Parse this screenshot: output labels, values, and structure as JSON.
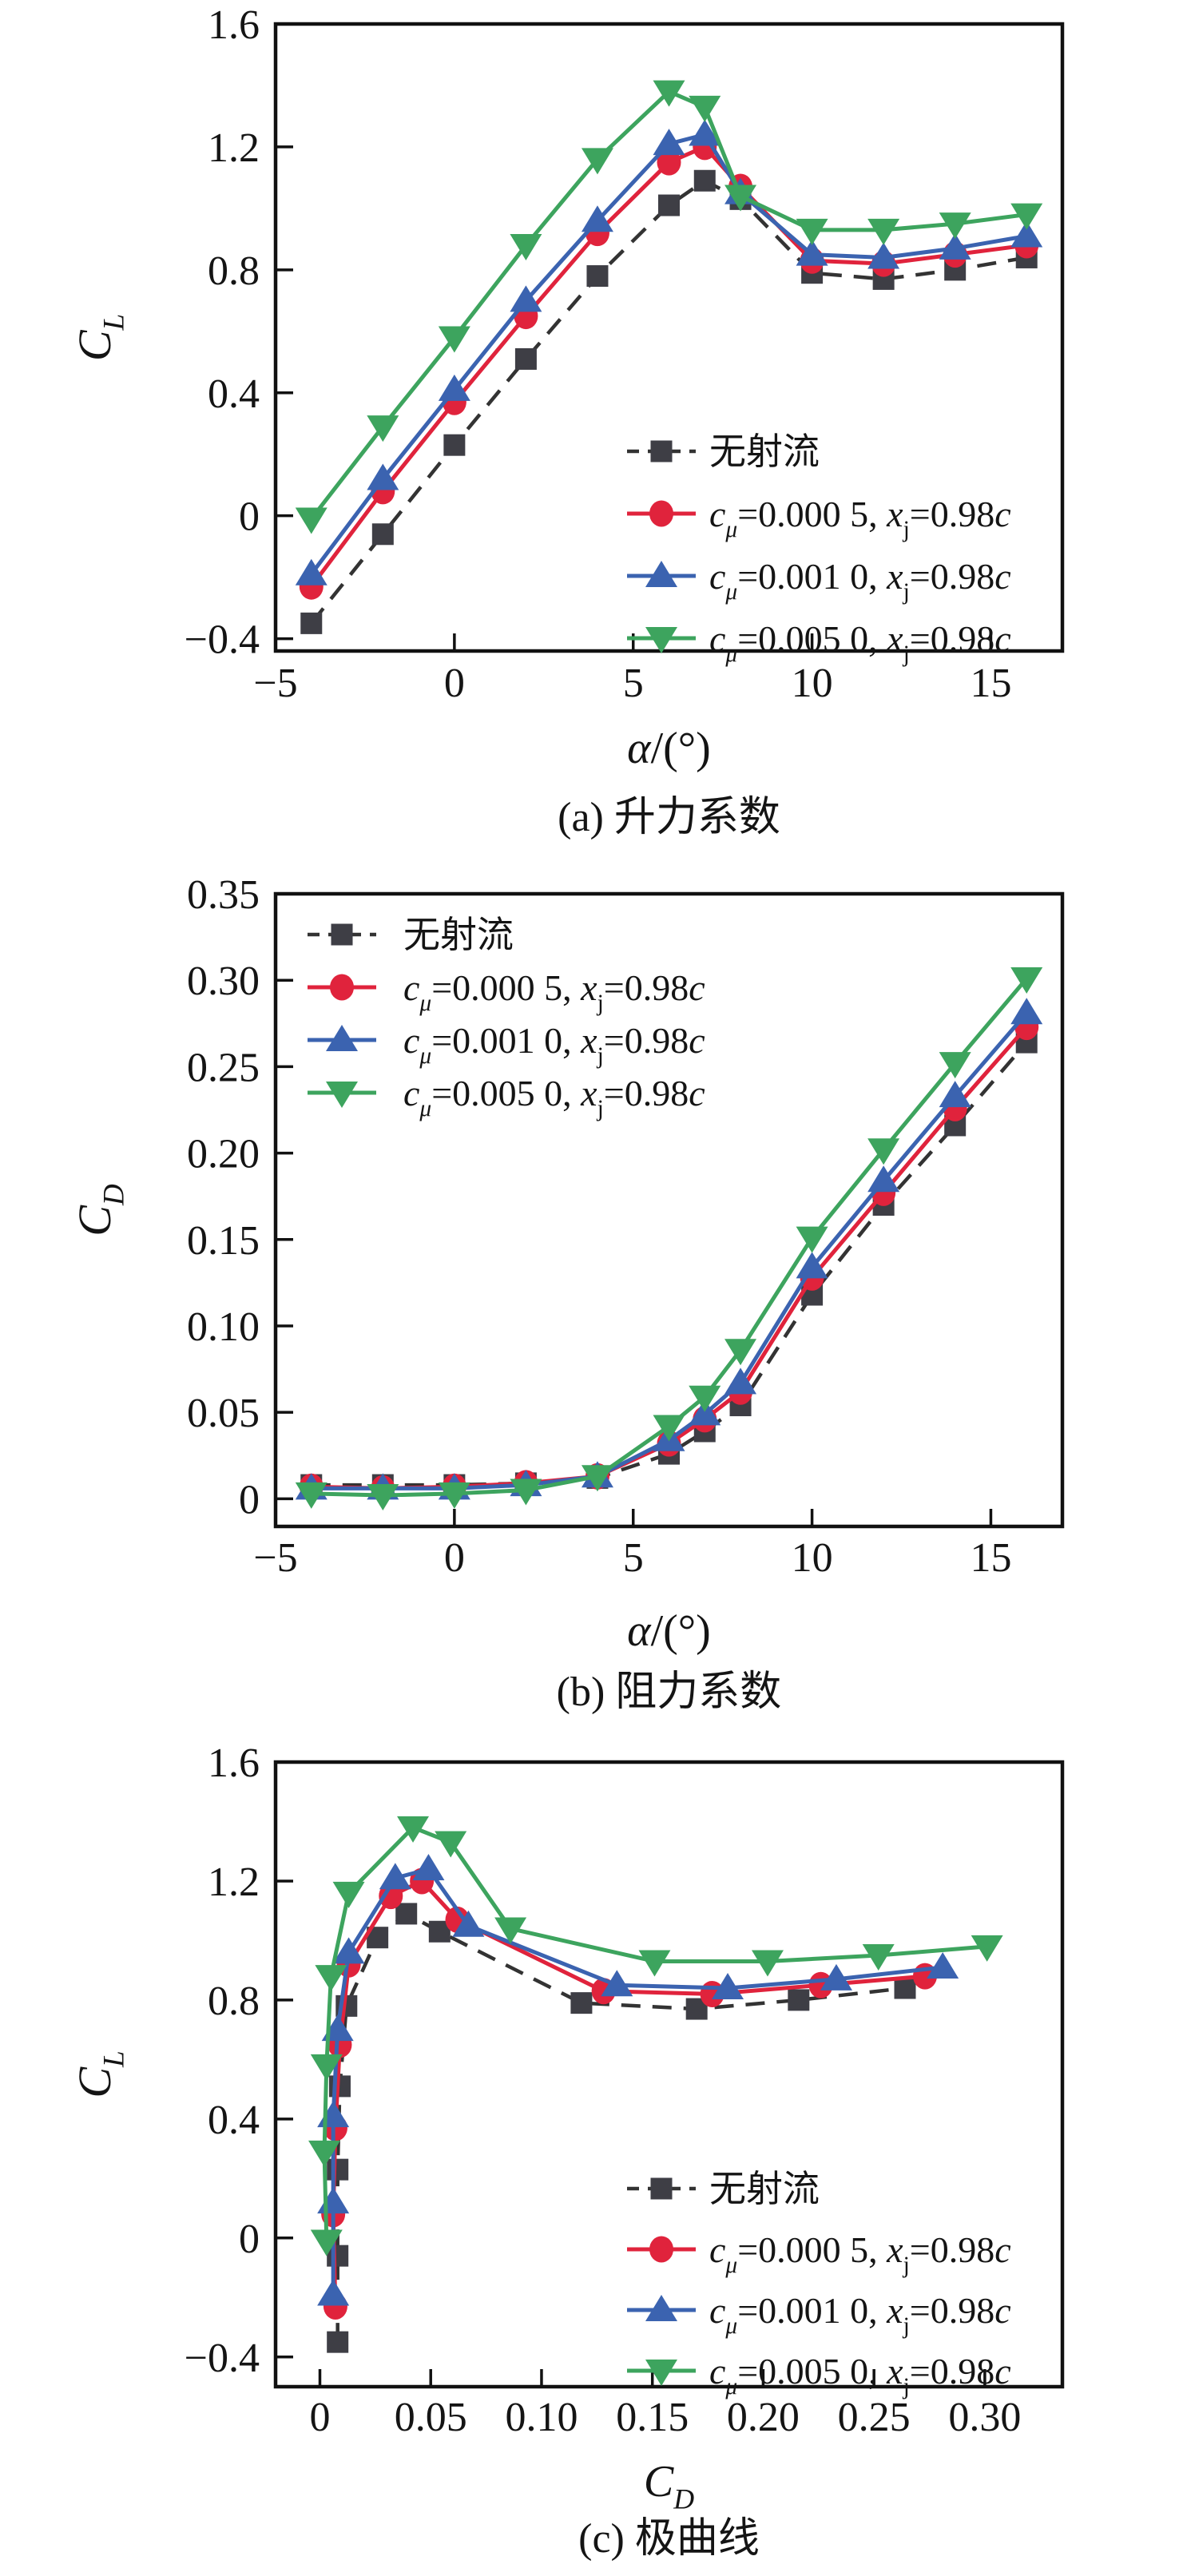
{
  "figure": {
    "background": "#ffffff",
    "axis_color": "#111111",
    "text_color": "#141414"
  },
  "chart_data": [
    {
      "id": "a",
      "type": "line",
      "caption": "(a) 升力系数",
      "xlabel": "α/(°)",
      "ylabel": "C_L",
      "xlabel_segments": [
        {
          "t": "α",
          "i": true
        },
        {
          "t": "/(°)"
        }
      ],
      "ylabel_segments": [
        {
          "t": "C",
          "i": true
        },
        {
          "t": "L",
          "i": true,
          "sub": true
        }
      ],
      "xlim": [
        -5,
        17
      ],
      "ylim": [
        -0.44,
        1.6
      ],
      "xticks": [
        -5,
        0,
        5,
        10,
        15
      ],
      "xtick_labels": [
        "−5",
        "0",
        "5",
        "10",
        "15"
      ],
      "yticks": [
        -0.4,
        0,
        0.4,
        0.8,
        1.2,
        1.6
      ],
      "ytick_labels": [
        "−0.4",
        "0",
        "0.4",
        "0.8",
        "1.2",
        "1.6"
      ],
      "grid": false,
      "legend_position": "inside-right-middle",
      "x": [
        -4,
        -2,
        0,
        2,
        4,
        6,
        7,
        8,
        10,
        12,
        14,
        16
      ],
      "series": [
        {
          "name": "无射流",
          "name_segments": [
            {
              "t": "无射流"
            }
          ],
          "marker": "square",
          "color": "#3e3e45",
          "line": "dashed",
          "line_color": "#333333",
          "values": [
            -0.35,
            -0.06,
            0.23,
            0.51,
            0.78,
            1.01,
            1.09,
            1.03,
            0.79,
            0.77,
            0.8,
            0.84
          ]
        },
        {
          "name": "cμ=0.000 5, xj=0.98c",
          "name_segments": [
            {
              "t": "c",
              "i": true
            },
            {
              "t": "μ",
              "i": true,
              "sub": true
            },
            {
              "t": "=0.000 5, "
            },
            {
              "t": "x",
              "i": true
            },
            {
              "t": "j",
              "sub": true
            },
            {
              "t": "=0.98"
            },
            {
              "t": "c",
              "i": true
            }
          ],
          "marker": "circle",
          "color": "#e0233c",
          "line": "solid",
          "line_color": "#e0233c",
          "values": [
            -0.23,
            0.08,
            0.37,
            0.65,
            0.92,
            1.15,
            1.2,
            1.07,
            0.83,
            0.82,
            0.85,
            0.88
          ]
        },
        {
          "name": "cμ=0.001 0, xj=0.98c",
          "name_segments": [
            {
              "t": "c",
              "i": true
            },
            {
              "t": "μ",
              "i": true,
              "sub": true
            },
            {
              "t": "=0.001 0, "
            },
            {
              "t": "x",
              "i": true
            },
            {
              "t": "j",
              "sub": true
            },
            {
              "t": "=0.98"
            },
            {
              "t": "c",
              "i": true
            }
          ],
          "marker": "triangle-up",
          "color": "#3b63b0",
          "line": "solid",
          "line_color": "#3b63b0",
          "values": [
            -0.19,
            0.12,
            0.41,
            0.7,
            0.96,
            1.21,
            1.24,
            1.05,
            0.85,
            0.84,
            0.87,
            0.91
          ]
        },
        {
          "name": "cμ=0.005 0, xj=0.98c",
          "name_segments": [
            {
              "t": "c",
              "i": true
            },
            {
              "t": "μ",
              "i": true,
              "sub": true
            },
            {
              "t": "=0.005 0, "
            },
            {
              "t": "x",
              "i": true
            },
            {
              "t": "j",
              "sub": true
            },
            {
              "t": "=0.98"
            },
            {
              "t": "c",
              "i": true
            }
          ],
          "marker": "triangle-down",
          "color": "#3da45e",
          "line": "solid",
          "line_color": "#3da45e",
          "values": [
            -0.01,
            0.29,
            0.58,
            0.88,
            1.16,
            1.38,
            1.33,
            1.04,
            0.93,
            0.93,
            0.95,
            0.98
          ]
        }
      ]
    },
    {
      "id": "b",
      "type": "line",
      "caption": "(b) 阻力系数",
      "xlabel": "α/(°)",
      "ylabel": "C_D",
      "xlabel_segments": [
        {
          "t": "α",
          "i": true
        },
        {
          "t": "/(°)"
        }
      ],
      "ylabel_segments": [
        {
          "t": "C",
          "i": true
        },
        {
          "t": "D",
          "i": true,
          "sub": true
        }
      ],
      "xlim": [
        -5,
        17
      ],
      "ylim": [
        -0.016,
        0.35
      ],
      "xticks": [
        -5,
        0,
        5,
        10,
        15
      ],
      "xtick_labels": [
        "−5",
        "0",
        "5",
        "10",
        "15"
      ],
      "yticks": [
        0,
        0.05,
        0.1,
        0.15,
        0.2,
        0.25,
        0.3,
        0.35
      ],
      "ytick_labels": [
        "0",
        "0.05",
        "0.10",
        "0.15",
        "0.20",
        "0.25",
        "0.30",
        "0.35"
      ],
      "grid": false,
      "legend_position": "inside-left-top",
      "x": [
        -4,
        -2,
        0,
        2,
        4,
        6,
        7,
        8,
        10,
        12,
        14,
        16
      ],
      "series": [
        {
          "name": "无射流",
          "name_segments": [
            {
              "t": "无射流"
            }
          ],
          "marker": "square",
          "color": "#3e3e45",
          "line": "dashed",
          "line_color": "#333333",
          "values": [
            0.008,
            0.008,
            0.008,
            0.009,
            0.012,
            0.026,
            0.039,
            0.054,
            0.118,
            0.17,
            0.216,
            0.264
          ]
        },
        {
          "name": "cμ=0.000 5, xj=0.98c",
          "name_segments": [
            {
              "t": "c",
              "i": true
            },
            {
              "t": "μ",
              "i": true,
              "sub": true
            },
            {
              "t": "=0.000 5, "
            },
            {
              "t": "x",
              "i": true
            },
            {
              "t": "j",
              "sub": true
            },
            {
              "t": "=0.98"
            },
            {
              "t": "c",
              "i": true
            }
          ],
          "marker": "circle",
          "color": "#e0233c",
          "line": "solid",
          "line_color": "#e0233c",
          "values": [
            0.007,
            0.006,
            0.007,
            0.009,
            0.013,
            0.032,
            0.046,
            0.062,
            0.128,
            0.177,
            0.226,
            0.273
          ]
        },
        {
          "name": "cμ=0.001 0, xj=0.98c",
          "name_segments": [
            {
              "t": "c",
              "i": true
            },
            {
              "t": "μ",
              "i": true,
              "sub": true
            },
            {
              "t": "=0.001 0, "
            },
            {
              "t": "x",
              "i": true
            },
            {
              "t": "j",
              "sub": true
            },
            {
              "t": "=0.98"
            },
            {
              "t": "c",
              "i": true
            }
          ],
          "marker": "triangle-up",
          "color": "#3b63b0",
          "line": "solid",
          "line_color": "#3b63b0",
          "values": [
            0.006,
            0.006,
            0.006,
            0.008,
            0.013,
            0.034,
            0.049,
            0.067,
            0.134,
            0.184,
            0.233,
            0.281
          ]
        },
        {
          "name": "cμ=0.005 0, xj=0.98c",
          "name_segments": [
            {
              "t": "c",
              "i": true
            },
            {
              "t": "μ",
              "i": true,
              "sub": true
            },
            {
              "t": "=0.005 0, "
            },
            {
              "t": "x",
              "i": true
            },
            {
              "t": "j",
              "sub": true
            },
            {
              "t": "=0.98"
            },
            {
              "t": "c",
              "i": true
            }
          ],
          "marker": "triangle-down",
          "color": "#3da45e",
          "line": "solid",
          "line_color": "#3da45e",
          "values": [
            0.003,
            0.002,
            0.003,
            0.005,
            0.013,
            0.042,
            0.059,
            0.086,
            0.151,
            0.202,
            0.252,
            0.301
          ]
        }
      ]
    },
    {
      "id": "c",
      "type": "line",
      "caption": "(c) 极曲线",
      "xlabel": "C_D",
      "ylabel": "C_L",
      "xlabel_segments": [
        {
          "t": "C",
          "i": true
        },
        {
          "t": "D",
          "i": true,
          "sub": true
        }
      ],
      "ylabel_segments": [
        {
          "t": "C",
          "i": true
        },
        {
          "t": "L",
          "i": true,
          "sub": true
        }
      ],
      "xlim": [
        -0.02,
        0.335
      ],
      "ylim": [
        -0.5,
        1.6
      ],
      "xticks": [
        0,
        0.05,
        0.1,
        0.15,
        0.2,
        0.25,
        0.3
      ],
      "xtick_labels": [
        "0",
        "0.05",
        "0.10",
        "0.15",
        "0.20",
        "0.25",
        "0.30"
      ],
      "yticks": [
        -0.4,
        0,
        0.4,
        0.8,
        1.2,
        1.6
      ],
      "ytick_labels": [
        "−0.4",
        "0",
        "0.4",
        "0.8",
        "1.2",
        "1.6"
      ],
      "grid": false,
      "legend_position": "inside-right-bottom",
      "series": [
        {
          "name": "无射流",
          "name_segments": [
            {
              "t": "无射流"
            }
          ],
          "marker": "square",
          "color": "#3e3e45",
          "line": "dashed",
          "line_color": "#333333",
          "x": [
            0.008,
            0.008,
            0.008,
            0.009,
            0.012,
            0.026,
            0.039,
            0.054,
            0.118,
            0.17,
            0.216,
            0.264
          ],
          "values": [
            -0.35,
            -0.06,
            0.23,
            0.51,
            0.78,
            1.01,
            1.09,
            1.03,
            0.79,
            0.77,
            0.8,
            0.84
          ]
        },
        {
          "name": "cμ=0.000 5, xj=0.98c",
          "name_segments": [
            {
              "t": "c",
              "i": true
            },
            {
              "t": "μ",
              "i": true,
              "sub": true
            },
            {
              "t": "=0.000 5, "
            },
            {
              "t": "x",
              "i": true
            },
            {
              "t": "j",
              "sub": true
            },
            {
              "t": "=0.98"
            },
            {
              "t": "c",
              "i": true
            }
          ],
          "marker": "circle",
          "color": "#e0233c",
          "line": "solid",
          "line_color": "#e0233c",
          "x": [
            0.007,
            0.006,
            0.007,
            0.009,
            0.013,
            0.032,
            0.046,
            0.062,
            0.128,
            0.177,
            0.226,
            0.273
          ],
          "values": [
            -0.23,
            0.08,
            0.37,
            0.65,
            0.92,
            1.15,
            1.2,
            1.07,
            0.83,
            0.82,
            0.85,
            0.88
          ]
        },
        {
          "name": "cμ=0.001 0, xj=0.98c",
          "name_segments": [
            {
              "t": "c",
              "i": true
            },
            {
              "t": "μ",
              "i": true,
              "sub": true
            },
            {
              "t": "=0.001 0, "
            },
            {
              "t": "x",
              "i": true
            },
            {
              "t": "j",
              "sub": true
            },
            {
              "t": "=0.98"
            },
            {
              "t": "c",
              "i": true
            }
          ],
          "marker": "triangle-up",
          "color": "#3b63b0",
          "line": "solid",
          "line_color": "#3b63b0",
          "x": [
            0.006,
            0.006,
            0.006,
            0.008,
            0.013,
            0.034,
            0.049,
            0.067,
            0.134,
            0.184,
            0.233,
            0.281
          ],
          "values": [
            -0.19,
            0.12,
            0.41,
            0.7,
            0.96,
            1.21,
            1.24,
            1.05,
            0.85,
            0.84,
            0.87,
            0.91
          ]
        },
        {
          "name": "cμ=0.005 0, xj=0.98c",
          "name_segments": [
            {
              "t": "c",
              "i": true
            },
            {
              "t": "μ",
              "i": true,
              "sub": true
            },
            {
              "t": "=0.005 0, "
            },
            {
              "t": "x",
              "i": true
            },
            {
              "t": "j",
              "sub": true
            },
            {
              "t": "=0.98"
            },
            {
              "t": "c",
              "i": true
            }
          ],
          "marker": "triangle-down",
          "color": "#3da45e",
          "line": "solid",
          "line_color": "#3da45e",
          "x": [
            0.003,
            0.002,
            0.003,
            0.005,
            0.013,
            0.042,
            0.059,
            0.086,
            0.151,
            0.202,
            0.252,
            0.301
          ],
          "values": [
            -0.01,
            0.29,
            0.58,
            0.88,
            1.16,
            1.38,
            1.33,
            1.04,
            0.93,
            0.93,
            0.95,
            0.98
          ]
        }
      ]
    }
  ]
}
